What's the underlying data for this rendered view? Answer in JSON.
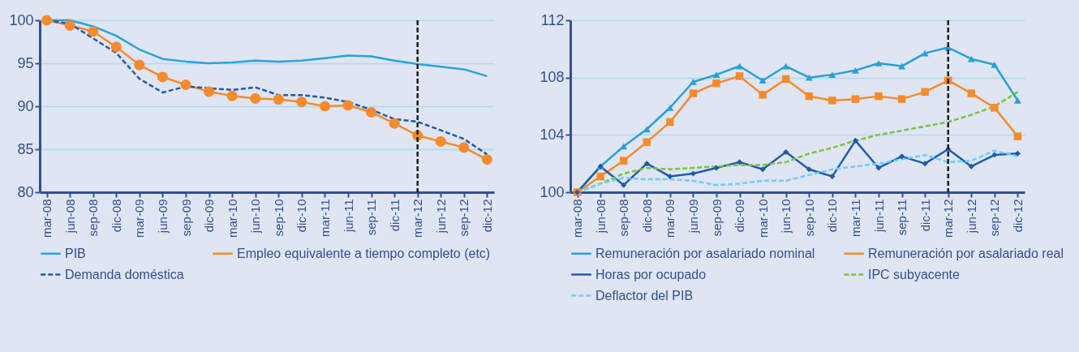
{
  "chart_data": [
    {
      "type": "line",
      "categories": [
        "mar-08",
        "jun-08",
        "sep-08",
        "dic-08",
        "mar-09",
        "jun-09",
        "sep-09",
        "dic-09",
        "mar-10",
        "jun-10",
        "sep-10",
        "dic-10",
        "mar-11",
        "jun-11",
        "sep-11",
        "dic-11",
        "mar-12",
        "jun-12",
        "sep-12",
        "dic-12"
      ],
      "series": [
        {
          "name": "PIB",
          "color": "#29a3d9",
          "line_style": "solid",
          "marker": "none",
          "values": [
            100,
            100,
            99.3,
            98.2,
            96.6,
            95.5,
            95.2,
            95.0,
            95.1,
            95.3,
            95.2,
            95.3,
            95.6,
            95.9,
            95.8,
            95.3,
            94.9,
            94.6,
            94.3,
            93.5
          ]
        },
        {
          "name": "Empleo equivalente a tiempo completo (etc)",
          "color": "#f58b2e",
          "line_style": "solid",
          "marker": "circle",
          "values": [
            100,
            99.4,
            98.7,
            96.9,
            94.8,
            93.4,
            92.5,
            91.7,
            91.2,
            90.9,
            90.8,
            90.5,
            90.0,
            90.1,
            89.3,
            88.0,
            86.6,
            85.9,
            85.2,
            83.8
          ]
        },
        {
          "name": "Demanda doméstica",
          "color": "#1f5ca8",
          "line_style": "dashed",
          "marker": "none",
          "values": [
            100,
            99.6,
            97.9,
            96.2,
            93.2,
            91.6,
            92.3,
            92.1,
            91.9,
            92.2,
            91.3,
            91.3,
            91.0,
            90.5,
            89.6,
            88.5,
            88.2,
            87.2,
            86.2,
            84.4
          ]
        }
      ],
      "ylim": [
        80,
        100
      ],
      "yticks": [
        80,
        85,
        90,
        95,
        100
      ],
      "grid": "y",
      "legend": "bottom",
      "ref_lines": [
        {
          "axis": "x",
          "value": "mar-12",
          "color": "#1a1a1a",
          "line_style": "dashed"
        }
      ]
    },
    {
      "type": "line",
      "categories": [
        "mar-08",
        "jun-08",
        "sep-08",
        "dic-08",
        "mar-09",
        "jun-09",
        "sep-09",
        "dic-09",
        "mar-10",
        "jun-10",
        "sep-10",
        "dic-10",
        "mar-11",
        "jun-11",
        "sep-11",
        "dic-11",
        "mar-12",
        "jun-12",
        "sep-12",
        "dic-12"
      ],
      "series": [
        {
          "name": "Remuneración por asalariado nominal",
          "color": "#2a9fd6",
          "line_style": "solid",
          "marker": "triangle",
          "values": [
            100,
            101.8,
            103.2,
            104.4,
            105.9,
            107.7,
            108.2,
            108.8,
            107.8,
            108.8,
            108.0,
            108.2,
            108.5,
            109.0,
            108.8,
            109.7,
            110.1,
            109.3,
            108.9,
            106.4
          ]
        },
        {
          "name": "Remuneración por asalariado real",
          "color": "#f58b2e",
          "line_style": "solid",
          "marker": "square",
          "values": [
            100,
            101.1,
            102.2,
            103.5,
            104.9,
            106.9,
            107.6,
            108.1,
            106.8,
            107.9,
            106.7,
            106.4,
            106.5,
            106.7,
            106.5,
            107.0,
            107.8,
            106.9,
            105.9,
            103.9
          ]
        },
        {
          "name": "Horas por ocupado",
          "color": "#1f5ca8",
          "line_style": "solid",
          "marker": "diamond",
          "values": [
            100,
            101.8,
            100.5,
            102.0,
            101.1,
            101.3,
            101.7,
            102.1,
            101.6,
            102.8,
            101.6,
            101.1,
            103.6,
            101.7,
            102.5,
            102.0,
            103.0,
            101.8,
            102.6,
            102.7
          ]
        },
        {
          "name": "IPC subyacente",
          "color": "#7dc242",
          "line_style": "dashed",
          "marker": "none",
          "values": [
            100,
            100.6,
            101.3,
            101.7,
            101.6,
            101.7,
            101.8,
            101.9,
            101.9,
            102.1,
            102.7,
            103.1,
            103.6,
            104.0,
            104.3,
            104.6,
            104.9,
            105.4,
            106.0,
            107.0
          ]
        },
        {
          "name": "Deflactor del PIB",
          "color": "#6ccff6",
          "line_style": "dashed",
          "marker": "none",
          "values": [
            100,
            100.6,
            101.0,
            100.9,
            100.9,
            100.8,
            100.5,
            100.6,
            100.8,
            100.8,
            101.2,
            101.6,
            101.8,
            102.0,
            102.3,
            102.6,
            102.1,
            102.2,
            102.9,
            102.5
          ]
        }
      ],
      "ylim": [
        100,
        112
      ],
      "yticks": [
        100,
        104,
        108,
        112
      ],
      "grid": "y",
      "legend": "bottom",
      "ref_lines": [
        {
          "axis": "x",
          "value": "mar-12",
          "color": "#1a1a1a",
          "line_style": "dashed"
        }
      ]
    }
  ]
}
